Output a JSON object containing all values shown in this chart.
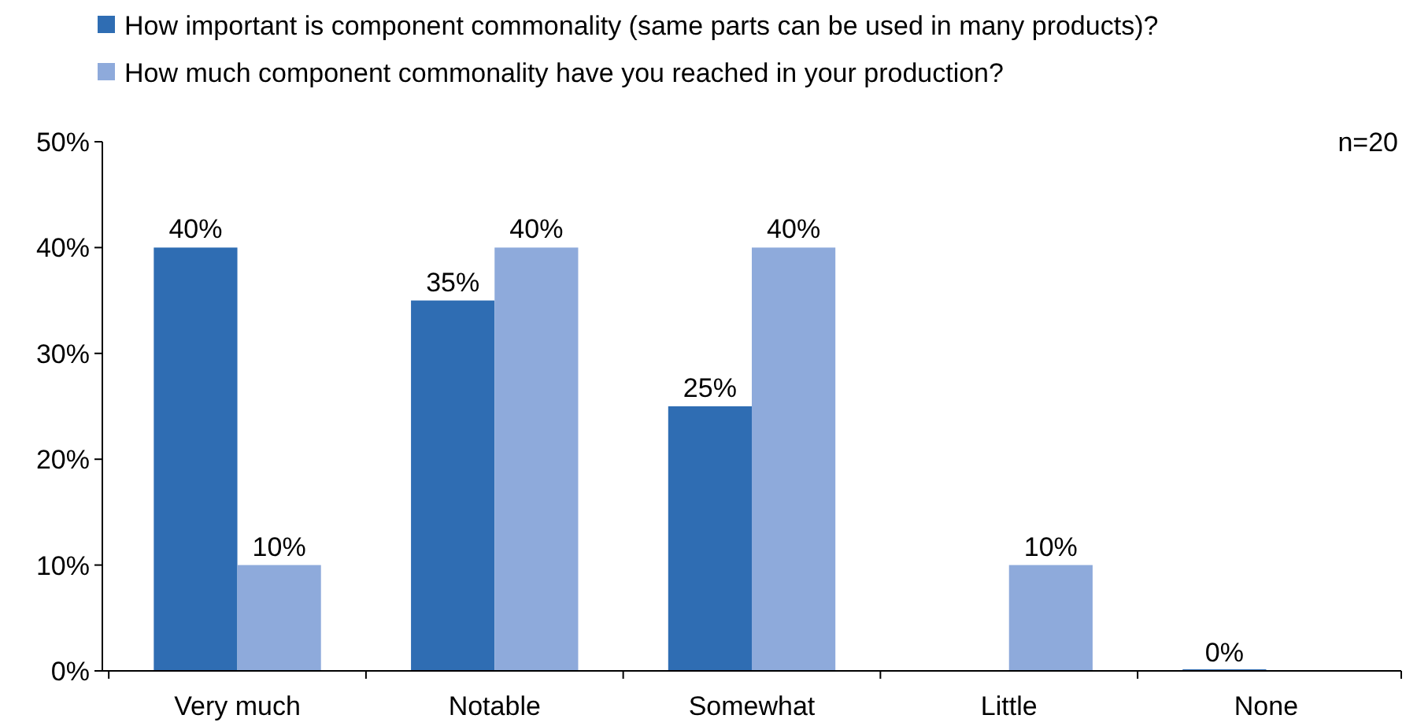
{
  "chart_data": {
    "type": "bar",
    "categories": [
      "Very much",
      "Notable",
      "Somewhat",
      "Little",
      "None"
    ],
    "series": [
      {
        "name": "How important is component commonality (same parts can be used in many products)?",
        "color": "#2f6db3",
        "values": [
          40,
          35,
          25,
          null,
          0
        ],
        "value_labels": [
          "40%",
          "35%",
          "25%",
          null,
          "0%"
        ]
      },
      {
        "name": "How much component commonality have you reached in your production?",
        "color": "#8eaadb",
        "values": [
          10,
          40,
          40,
          10,
          null
        ],
        "value_labels": [
          "10%",
          "40%",
          "40%",
          "10%",
          null
        ]
      }
    ],
    "ylim": [
      0,
      50
    ],
    "yticks": [
      {
        "value": 0,
        "label": "0%"
      },
      {
        "value": 10,
        "label": "10%"
      },
      {
        "value": 20,
        "label": "20%"
      },
      {
        "value": 30,
        "label": "30%"
      },
      {
        "value": 40,
        "label": "40%"
      },
      {
        "value": 50,
        "label": "50%"
      }
    ],
    "grid": false,
    "legend": "top left",
    "annotations": [
      "n=20"
    ]
  }
}
